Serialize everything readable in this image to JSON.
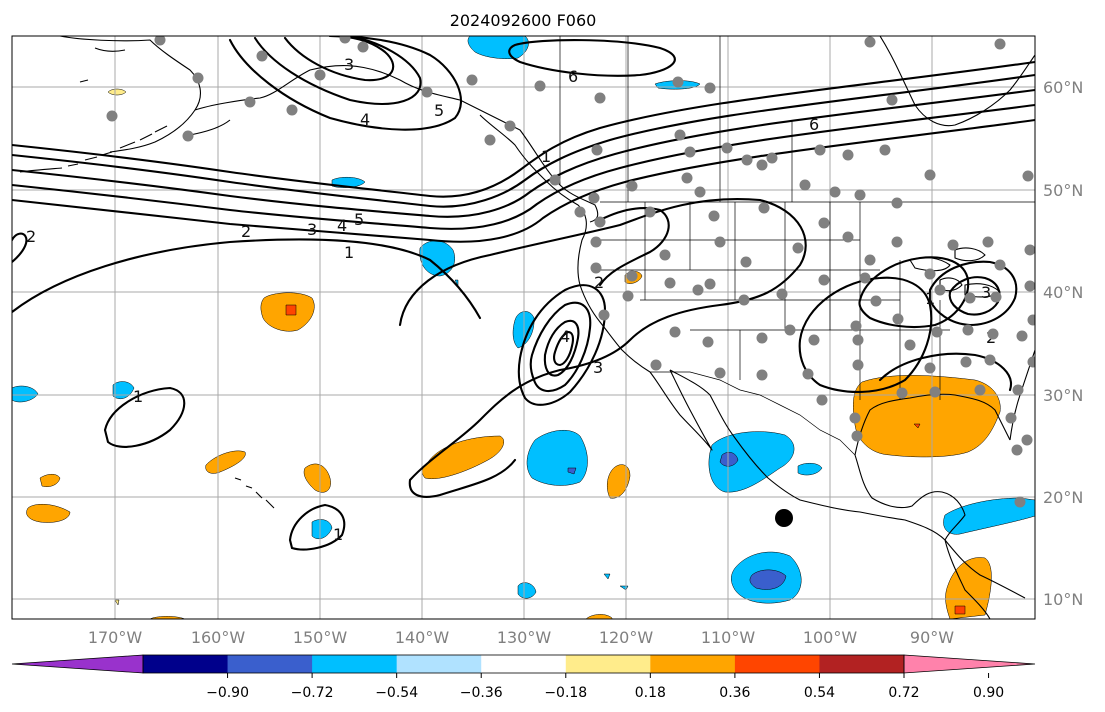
{
  "title": "2024092600 F060",
  "map": {
    "lon_range": [
      -180,
      -79
    ],
    "lat_range": [
      8,
      65
    ],
    "lon_ticks": [
      -170,
      -160,
      -150,
      -140,
      -130,
      -120,
      -110,
      -100,
      -90
    ],
    "lon_tick_labels": [
      "170°W",
      "160°W",
      "150°W",
      "140°W",
      "130°W",
      "120°W",
      "110°W",
      "100°W",
      "90°W"
    ],
    "lat_ticks": [
      10,
      20,
      30,
      40,
      50,
      60
    ],
    "lat_tick_labels": [
      "10°N",
      "20°N",
      "30°N",
      "40°N",
      "50°N",
      "60°N"
    ],
    "grid": true,
    "tick_label_color": "#808080"
  },
  "colorbar": {
    "colors": [
      "#9932cc",
      "#00008b",
      "#3a5fcd",
      "#00bfff",
      "#b0e2ff",
      "#ffffff",
      "#ffec8b",
      "#ffa500",
      "#ff4500",
      "#b22222",
      "#ff82ab"
    ],
    "tick_labels": [
      "−0.90",
      "−0.72",
      "−0.54",
      "−0.36",
      "−0.18",
      "0.18",
      "0.36",
      "0.54",
      "0.72",
      "0.90"
    ],
    "extend": "both"
  },
  "contour_labels": [
    "2",
    "2",
    "3",
    "4",
    "5",
    "1",
    "3",
    "4",
    "5",
    "6",
    "6",
    "2",
    "4",
    "3",
    "1",
    "1",
    "3",
    "2",
    "1",
    "1"
  ],
  "station_color": "#808080",
  "marker_color": "#000000",
  "colors": {
    "orange": "#ffa500",
    "red_orange": "#ff4500",
    "deep_sky_blue": "#00bfff",
    "royal_blue": "#3a5fcd",
    "light_blue": "#b0e2ff",
    "light_yellow": "#ffec8b"
  }
}
